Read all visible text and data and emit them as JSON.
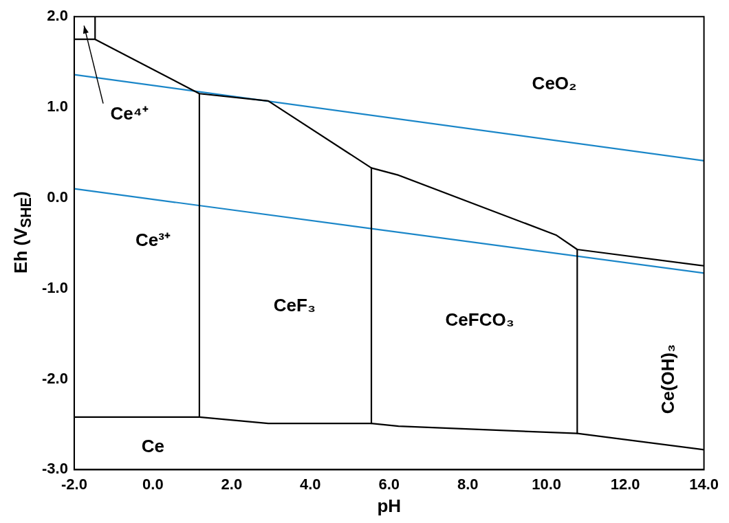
{
  "chart_data": {
    "type": "line",
    "xlabel": "pH",
    "ylabel": "Eh (V$_{SHE}$)",
    "xlim": [
      -2,
      14
    ],
    "ylim": [
      -3,
      2
    ],
    "xticks": [
      {
        "value": -2,
        "label": "-2.0"
      },
      {
        "value": 0,
        "label": "0.0"
      },
      {
        "value": 2,
        "label": "2.0"
      },
      {
        "value": 4,
        "label": "4.0"
      },
      {
        "value": 6,
        "label": "6.0"
      },
      {
        "value": 8,
        "label": "8.0"
      },
      {
        "value": 10,
        "label": "10.0"
      },
      {
        "value": 12,
        "label": "12.0"
      },
      {
        "value": 14,
        "label": "14.0"
      }
    ],
    "yticks": [
      {
        "value": -3,
        "label": "-3.0"
      },
      {
        "value": -2,
        "label": "-2.0"
      },
      {
        "value": -1,
        "label": "-1.0"
      },
      {
        "value": 0,
        "label": "0.0"
      },
      {
        "value": 1,
        "label": "1.0"
      },
      {
        "value": 2,
        "label": "2.0"
      }
    ],
    "grid": false,
    "legend": false,
    "marker": "none",
    "line_style": "solid",
    "series": [
      {
        "color": "#000000",
        "x": [
          -2,
          -1.47,
          -1.47
        ],
        "values": [
          1.75,
          1.75,
          2
        ]
      },
      {
        "color": "#000000",
        "x": [
          -1.47,
          1.18,
          2.93,
          5.55,
          6.24,
          10.24,
          10.78,
          14
        ],
        "values": [
          1.75,
          1.15,
          1.07,
          0.33,
          0.25,
          -0.41,
          -0.57,
          -0.75
        ]
      },
      {
        "color": "#000000",
        "x": [
          1.18,
          1.18
        ],
        "values": [
          1.15,
          -2.42
        ]
      },
      {
        "color": "#000000",
        "x": [
          5.55,
          5.55
        ],
        "values": [
          0.33,
          -2.49
        ]
      },
      {
        "color": "#000000",
        "x": [
          10.78,
          10.78
        ],
        "values": [
          -0.57,
          -2.6
        ]
      },
      {
        "color": "#000000",
        "x": [
          -2,
          1.18,
          2.93,
          5.55,
          6.24,
          10.78,
          14
        ],
        "values": [
          -2.42,
          -2.42,
          -2.49,
          -2.49,
          -2.52,
          -2.6,
          -2.78
        ]
      },
      {
        "color": "#1a86c8",
        "x": [
          -2,
          14
        ],
        "values": [
          1.36,
          0.41
        ]
      },
      {
        "color": "#1a86c8",
        "x": [
          -2,
          14
        ],
        "values": [
          0.1,
          -0.83
        ]
      }
    ],
    "annotations": [
      "CeO₂",
      "Ce⁴⁺",
      "Ce³⁺",
      "CeF₃",
      "CeFCO₃",
      "Ce(OH)₃",
      "Ce"
    ]
  }
}
